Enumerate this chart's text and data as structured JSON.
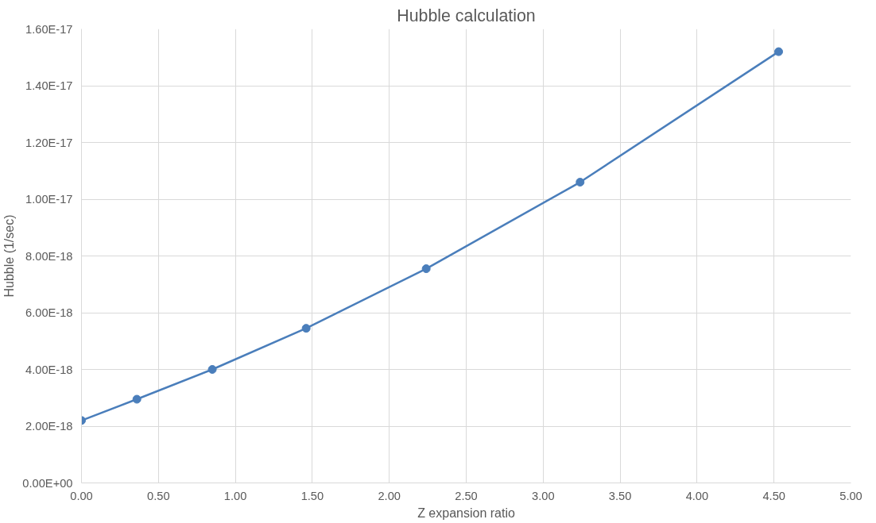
{
  "chart_data": {
    "type": "line",
    "title": "Hubble calculation",
    "xlabel": "Z expansion ratio",
    "ylabel": "Hubble (1/sec)",
    "x": [
      0.0,
      0.36,
      0.85,
      1.46,
      2.24,
      3.24,
      4.53
    ],
    "series": [
      {
        "color": "#4a7ebb",
        "values": [
          2.2e-18,
          2.95e-18,
          4e-18,
          5.45e-18,
          7.55e-18,
          1.06e-17,
          1.52e-17
        ]
      }
    ],
    "xlim": [
      0,
      5
    ],
    "xticks": [
      {
        "value": 0,
        "label": "0.00"
      },
      {
        "value": 0.5,
        "label": "0.50"
      },
      {
        "value": 1,
        "label": "1.00"
      },
      {
        "value": 1.5,
        "label": "1.50"
      },
      {
        "value": 2,
        "label": "2.00"
      },
      {
        "value": 2.5,
        "label": "2.50"
      },
      {
        "value": 3,
        "label": "3.00"
      },
      {
        "value": 3.5,
        "label": "3.50"
      },
      {
        "value": 4,
        "label": "4.00"
      },
      {
        "value": 4.5,
        "label": "4.50"
      },
      {
        "value": 5,
        "label": "5.00"
      }
    ],
    "ylim": [
      0,
      1.6e-17
    ],
    "yticks": [
      {
        "value": 0,
        "label": "0.00E+00"
      },
      {
        "value": 2e-18,
        "label": "2.00E-18"
      },
      {
        "value": 4e-18,
        "label": "4.00E-18"
      },
      {
        "value": 6e-18,
        "label": "6.00E-18"
      },
      {
        "value": 8e-18,
        "label": "8.00E-18"
      },
      {
        "value": 1e-17,
        "label": "1.00E-17"
      },
      {
        "value": 1.2e-17,
        "label": "1.20E-17"
      },
      {
        "value": 1.4e-17,
        "label": "1.40E-17"
      },
      {
        "value": 1.6e-17,
        "label": "1.60E-17"
      }
    ],
    "grid": true,
    "marker": "circle",
    "line_style": "solid"
  }
}
